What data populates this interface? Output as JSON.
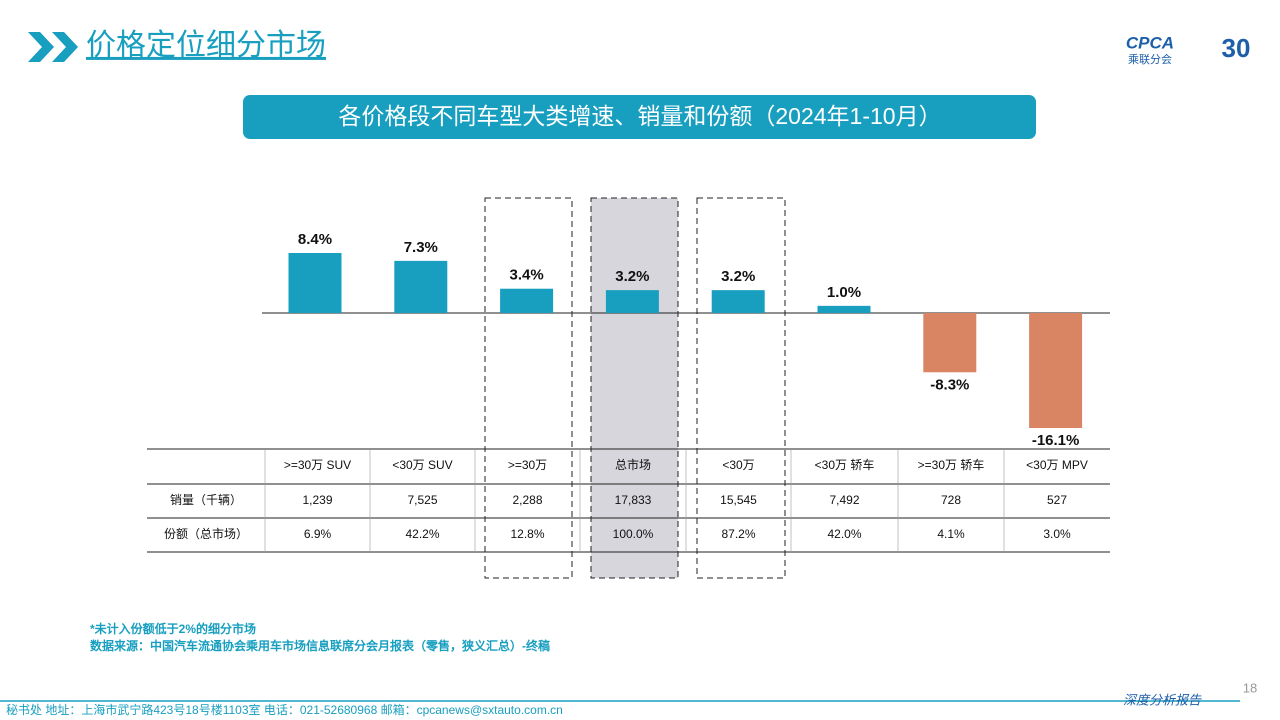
{
  "header": {
    "title": "价格定位细分市场",
    "logo": "CPCA",
    "logo_sub": "乘联分会",
    "anniversary": "30"
  },
  "chart_data": {
    "type": "bar",
    "title": "各价格段不同车型大类增速、销量和份额（2024年1-10月）",
    "categories": [
      ">=30万 SUV",
      "<30万 SUV",
      ">=30万",
      "总市场",
      "<30万",
      "<30万 轿车",
      ">=30万 轿车",
      "<30万 MPV"
    ],
    "values": [
      8.4,
      7.3,
      3.4,
      3.2,
      3.2,
      1.0,
      -8.3,
      -16.1
    ],
    "value_labels": [
      "8.4%",
      "7.3%",
      "3.4%",
      "3.2%",
      "3.2%",
      "1.0%",
      "-8.3%",
      "-16.1%"
    ],
    "color_positive": "#189fc0",
    "color_negative": "#d98563"
  },
  "table": {
    "rows": [
      {
        "label": "销量（千辆）",
        "values": [
          "1,239",
          "7,525",
          "2,288",
          "17,833",
          "15,545",
          "7,492",
          "728",
          "527"
        ]
      },
      {
        "label": "份额（总市场）",
        "values": [
          "6.9%",
          "42.2%",
          "12.8%",
          "100.0%",
          "87.2%",
          "42.0%",
          "4.1%",
          "3.0%"
        ]
      }
    ]
  },
  "notes": [
    "*未计入份额低于2%的细分市场",
    "数据来源：中国汽车流通协会乘用车市场信息联席分会月报表（零售，狭义汇总）-终稿"
  ],
  "footer": {
    "address": "秘书处   地址：上海市武宁路423号18号楼1103室  电话：021-52680968   邮箱：cpcanews@sxtauto.com.cn",
    "page": "18",
    "tag": "深度分析报告"
  }
}
